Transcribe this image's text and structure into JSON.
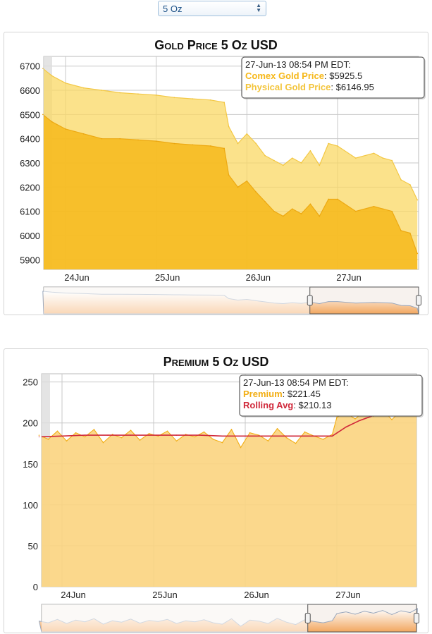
{
  "selector": {
    "value": "5 Oz",
    "arrows": "▲▼"
  },
  "charts": {
    "gold": {
      "title": "Gold Price 5 Oz USD",
      "tooltip": {
        "header": "27-Jun-13 08:54 PM EDT:",
        "rows": [
          {
            "label": "Comex Gold Price",
            "value": "$5925.5"
          },
          {
            "label": "Physical Gold Price",
            "value": "$6146.95"
          }
        ]
      }
    },
    "premium": {
      "title": "Premium 5 Oz USD",
      "tooltip": {
        "header": "27-Jun-13 08:54 PM EDT:",
        "rows": [
          {
            "label": "Premium",
            "value": "$221.45"
          },
          {
            "label": "Rolling Avg",
            "value": "$210.13"
          }
        ]
      }
    }
  },
  "colors": {
    "comex": "#f6b81a",
    "physical": "#fad864",
    "premium": "#f2ae14",
    "rolling": "#d0283a",
    "navigator": "#f2a760",
    "grid": "#c8c8c8"
  },
  "chart_data": [
    {
      "type": "area",
      "title": "Gold Price 5 Oz USD",
      "xlabel": "",
      "ylabel": "",
      "x_ticks": [
        "24Jun",
        "25Jun",
        "26Jun",
        "27Jun"
      ],
      "x_range_days": [
        23.75,
        27.88
      ],
      "y_ticks": [
        5900,
        6000,
        6100,
        6200,
        6300,
        6400,
        6500,
        6600,
        6700
      ],
      "ylim": [
        5860,
        6740
      ],
      "grid": true,
      "series": [
        {
          "name": "Comex Gold Price",
          "x": [
            23.75,
            23.85,
            24.0,
            24.2,
            24.4,
            24.6,
            24.8,
            25.0,
            25.2,
            25.4,
            25.6,
            25.75,
            25.8,
            25.9,
            26.0,
            26.1,
            26.2,
            26.3,
            26.4,
            26.5,
            26.6,
            26.7,
            26.8,
            26.9,
            27.0,
            27.2,
            27.4,
            27.5,
            27.6,
            27.7,
            27.8,
            27.88
          ],
          "values": [
            6500,
            6470,
            6440,
            6420,
            6400,
            6400,
            6395,
            6390,
            6380,
            6375,
            6370,
            6360,
            6250,
            6200,
            6225,
            6180,
            6140,
            6100,
            6080,
            6110,
            6090,
            6130,
            6080,
            6150,
            6150,
            6100,
            6120,
            6110,
            6100,
            6020,
            6010,
            5925.5
          ]
        },
        {
          "name": "Physical Gold Price",
          "x": [
            23.75,
            23.85,
            24.0,
            24.2,
            24.4,
            24.6,
            24.8,
            25.0,
            25.2,
            25.4,
            25.6,
            25.75,
            25.8,
            25.9,
            26.0,
            26.1,
            26.2,
            26.3,
            26.4,
            26.5,
            26.6,
            26.7,
            26.8,
            26.9,
            27.0,
            27.2,
            27.4,
            27.5,
            27.6,
            27.7,
            27.8,
            27.88
          ],
          "values": [
            6690,
            6660,
            6630,
            6610,
            6600,
            6590,
            6585,
            6580,
            6570,
            6565,
            6560,
            6550,
            6450,
            6380,
            6420,
            6380,
            6330,
            6310,
            6290,
            6320,
            6300,
            6350,
            6290,
            6380,
            6370,
            6320,
            6340,
            6320,
            6310,
            6230,
            6210,
            6146.95
          ]
        }
      ]
    },
    {
      "type": "line",
      "title": "Premium 5 Oz USD",
      "xlabel": "",
      "ylabel": "",
      "x_ticks": [
        "24Jun",
        "25Jun",
        "26Jun",
        "27Jun"
      ],
      "x_range_days": [
        23.75,
        27.88
      ],
      "y_ticks": [
        0,
        50,
        100,
        150,
        200,
        250
      ],
      "ylim": [
        0,
        260
      ],
      "grid": true,
      "series": [
        {
          "name": "Premium",
          "area": true,
          "x": [
            23.75,
            23.85,
            23.95,
            24.05,
            24.15,
            24.25,
            24.35,
            24.45,
            24.55,
            24.65,
            24.75,
            24.85,
            24.95,
            25.05,
            25.15,
            25.25,
            25.35,
            25.45,
            25.55,
            25.65,
            25.75,
            25.85,
            25.95,
            26.05,
            26.15,
            26.25,
            26.35,
            26.45,
            26.55,
            26.65,
            26.75,
            26.85,
            26.95,
            27.0,
            27.1,
            27.2,
            27.3,
            27.4,
            27.5,
            27.6,
            27.7,
            27.8,
            27.88
          ],
          "values": [
            185,
            180,
            190,
            178,
            188,
            183,
            192,
            176,
            186,
            182,
            191,
            179,
            187,
            184,
            190,
            178,
            186,
            183,
            189,
            180,
            176,
            192,
            170,
            188,
            185,
            178,
            193,
            182,
            175,
            189,
            184,
            180,
            186,
            207,
            212,
            205,
            214,
            208,
            216,
            204,
            215,
            210,
            221.45
          ]
        },
        {
          "name": "Rolling Avg",
          "x": [
            23.75,
            24.0,
            24.25,
            24.5,
            24.75,
            25.0,
            25.25,
            25.5,
            25.75,
            26.0,
            26.25,
            26.5,
            26.75,
            26.95,
            27.1,
            27.25,
            27.4,
            27.5,
            27.6,
            27.7,
            27.8,
            27.88
          ],
          "values": [
            183,
            184,
            185,
            185,
            185,
            185,
            185,
            185,
            184,
            184,
            184,
            184,
            184,
            184,
            195,
            203,
            209,
            210,
            209,
            210,
            210,
            210.13
          ]
        }
      ]
    }
  ]
}
